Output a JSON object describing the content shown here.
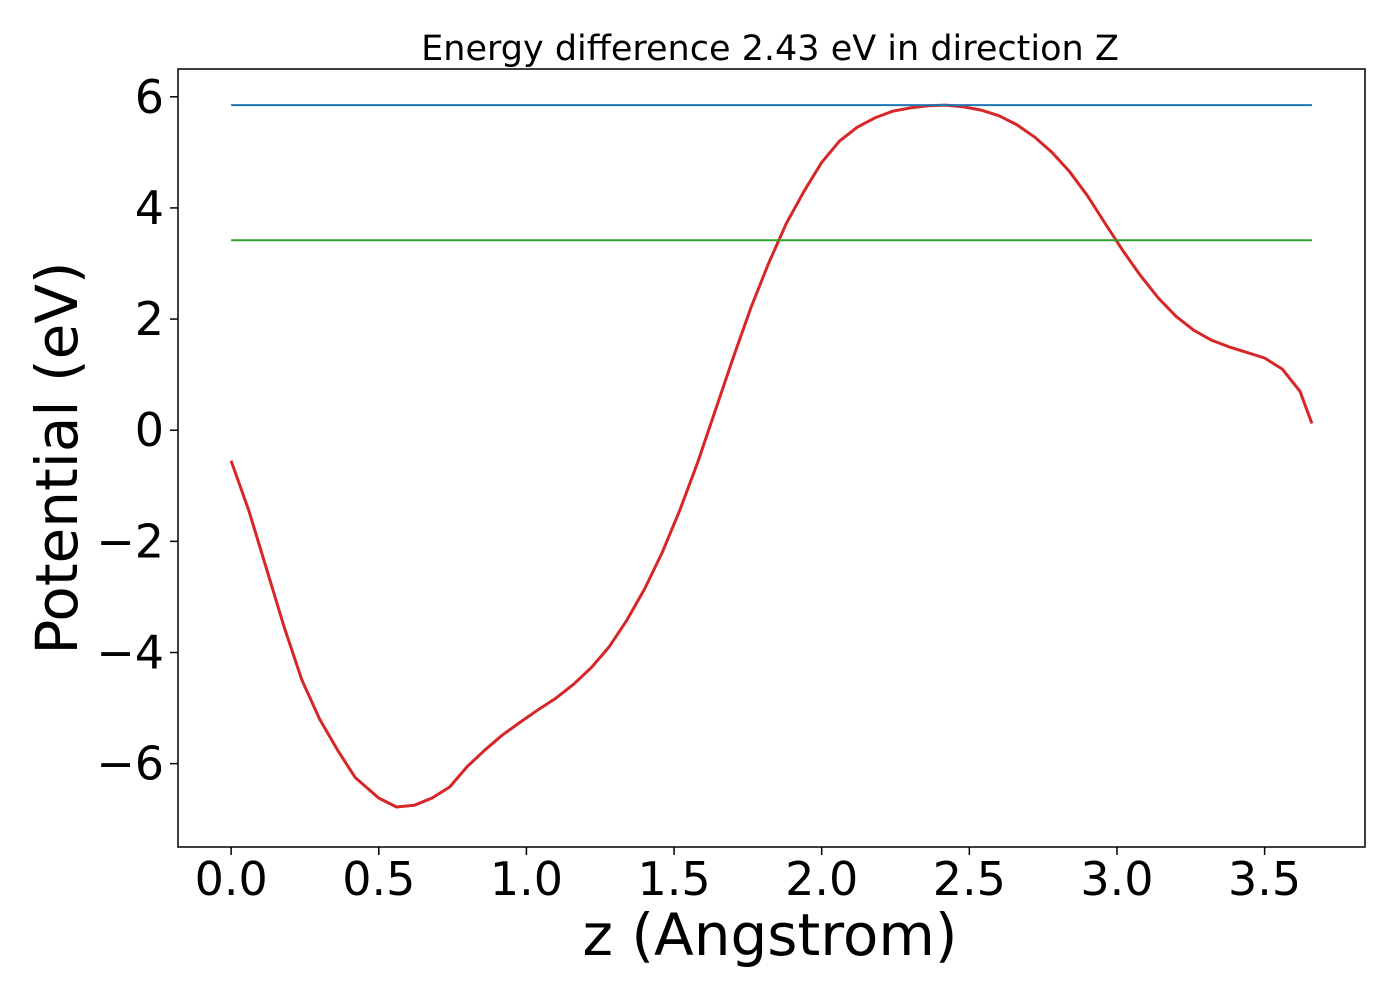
{
  "chart_data": {
    "type": "line",
    "title": "Energy difference 2.43 eV in direction Z",
    "xlabel": "z (Angstrom)",
    "ylabel": "Potential (eV)",
    "xlim": [
      -0.18,
      3.84
    ],
    "ylim": [
      -7.5,
      6.5
    ],
    "xticks": [
      0.0,
      0.5,
      1.0,
      1.5,
      2.0,
      2.5,
      3.0,
      3.5
    ],
    "xtick_labels": [
      "0.0",
      "0.5",
      "1.0",
      "1.5",
      "2.0",
      "2.5",
      "3.0",
      "3.5"
    ],
    "yticks": [
      -6,
      -4,
      -2,
      0,
      2,
      4,
      6
    ],
    "ytick_labels": [
      "−6",
      "−4",
      "−2",
      "0",
      "2",
      "4",
      "6"
    ],
    "grid": false,
    "legend": "none",
    "series": [
      {
        "color": "#d62728",
        "x": [
          0.0,
          0.06,
          0.12,
          0.18,
          0.24,
          0.3,
          0.36,
          0.42,
          0.5,
          0.56,
          0.62,
          0.68,
          0.74,
          0.8,
          0.86,
          0.92,
          0.98,
          1.04,
          1.1,
          1.16,
          1.22,
          1.28,
          1.34,
          1.4,
          1.46,
          1.52,
          1.58,
          1.64,
          1.7,
          1.76,
          1.82,
          1.88,
          1.94,
          2.0,
          2.06,
          2.12,
          2.18,
          2.24,
          2.3,
          2.36,
          2.42,
          2.48,
          2.54,
          2.6,
          2.66,
          2.72,
          2.78,
          2.84,
          2.9,
          2.96,
          3.02,
          3.08,
          3.14,
          3.2,
          3.26,
          3.32,
          3.38,
          3.44,
          3.5,
          3.56,
          3.62,
          3.66
        ],
        "y": [
          -0.55,
          -1.45,
          -2.5,
          -3.55,
          -4.5,
          -5.2,
          -5.75,
          -6.25,
          -6.62,
          -6.78,
          -6.75,
          -6.62,
          -6.42,
          -6.05,
          -5.75,
          -5.48,
          -5.25,
          -5.03,
          -4.82,
          -4.57,
          -4.27,
          -3.9,
          -3.42,
          -2.86,
          -2.2,
          -1.43,
          -0.58,
          0.36,
          1.3,
          2.2,
          3.0,
          3.72,
          4.3,
          4.82,
          5.2,
          5.45,
          5.62,
          5.74,
          5.8,
          5.84,
          5.85,
          5.82,
          5.76,
          5.66,
          5.5,
          5.28,
          5.0,
          4.65,
          4.22,
          3.72,
          3.23,
          2.78,
          2.38,
          2.05,
          1.8,
          1.62,
          1.5,
          1.4,
          1.3,
          1.1,
          0.7,
          0.12
        ]
      },
      {
        "color": "#1f77b4",
        "x": [
          0.0,
          3.66
        ],
        "y": [
          5.85,
          5.85
        ]
      },
      {
        "color": "#2ca02c",
        "x": [
          0.0,
          3.66
        ],
        "y": [
          3.42,
          3.42
        ]
      }
    ]
  }
}
